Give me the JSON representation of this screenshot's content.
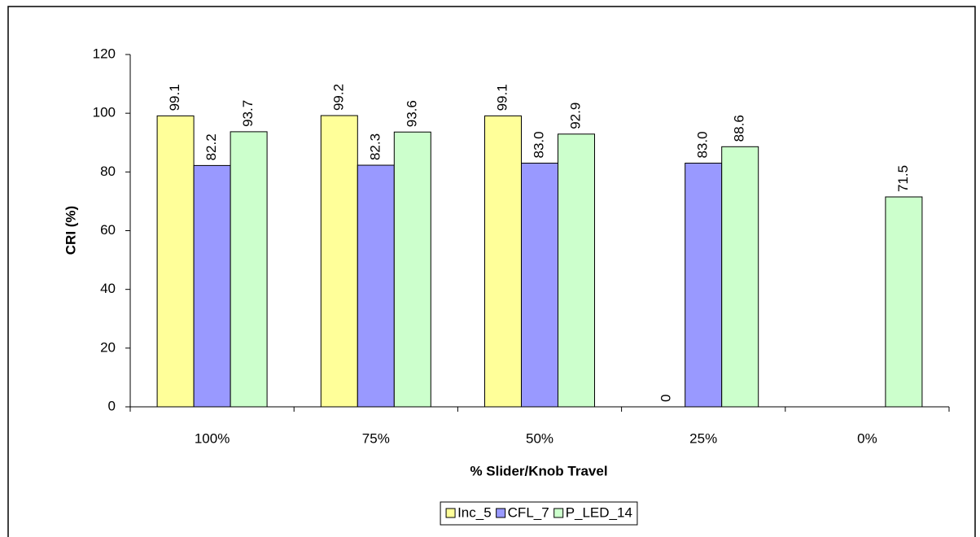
{
  "chart_data": {
    "type": "bar",
    "x_label": "% Slider/Knob Travel",
    "y_label": "CRI (%)",
    "categories": [
      "100%",
      "75%",
      "50%",
      "25%",
      "0%"
    ],
    "series": [
      {
        "name": "Inc_5",
        "color": "#ffff99",
        "values": [
          99.1,
          99.2,
          99.1,
          0,
          null
        ],
        "value_labels": [
          "99.1",
          "99.2",
          "99.1",
          "0",
          null
        ]
      },
      {
        "name": "CFL_7",
        "color": "#9999ff",
        "values": [
          82.2,
          82.3,
          83.0,
          83.0,
          null
        ],
        "value_labels": [
          "82.2",
          "82.3",
          "83.0",
          "83.0",
          null
        ]
      },
      {
        "name": "P_LED_14",
        "color": "#ccffcc",
        "values": [
          93.7,
          93.6,
          92.9,
          88.6,
          71.5
        ],
        "value_labels": [
          "93.7",
          "93.6",
          "92.9",
          "88.6",
          "71.5"
        ]
      }
    ],
    "ylim": [
      0,
      120
    ],
    "yticks": [
      0,
      20,
      40,
      60,
      80,
      100,
      120
    ],
    "grid": false,
    "legend": "bottom"
  }
}
